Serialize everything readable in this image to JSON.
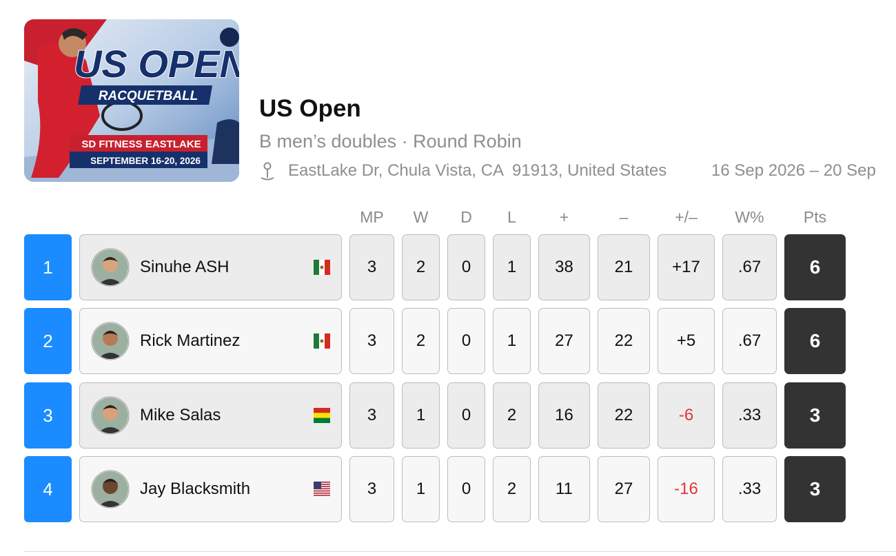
{
  "header": {
    "logo": {
      "title": "US OPEN",
      "subtitle": "RACQUETBALL",
      "venue": "SD FITNESS EASTLAKE",
      "dates": "SEPTEMBER 16-20, 2026"
    },
    "title": "US Open",
    "subtitle": "B men’s doubles · Round Robin",
    "location": "EastLake Dr, Chula Vista, CA  91913, United States",
    "dates": "16 Sep 2026 – 20 Sep"
  },
  "table": {
    "columns": [
      "MP",
      "W",
      "D",
      "L",
      "+",
      "–",
      "+/–",
      "W%",
      "Pts"
    ],
    "rows": [
      {
        "rank": 1,
        "name": "Sinuhe ASH",
        "flag": "mx",
        "stats": [
          3,
          2,
          0,
          1,
          38,
          21,
          "+17",
          ".67",
          6
        ]
      },
      {
        "rank": 2,
        "name": "Rick Martinez",
        "flag": "mx",
        "stats": [
          3,
          2,
          0,
          1,
          27,
          22,
          "+5",
          ".67",
          6
        ]
      },
      {
        "rank": 3,
        "name": "Mike Salas",
        "flag": "bo",
        "stats": [
          3,
          1,
          0,
          2,
          16,
          22,
          "-6",
          ".33",
          3
        ]
      },
      {
        "rank": 4,
        "name": "Jay Blacksmith",
        "flag": "us",
        "stats": [
          3,
          1,
          0,
          2,
          11,
          27,
          "-16",
          ".33",
          3
        ]
      }
    ]
  }
}
